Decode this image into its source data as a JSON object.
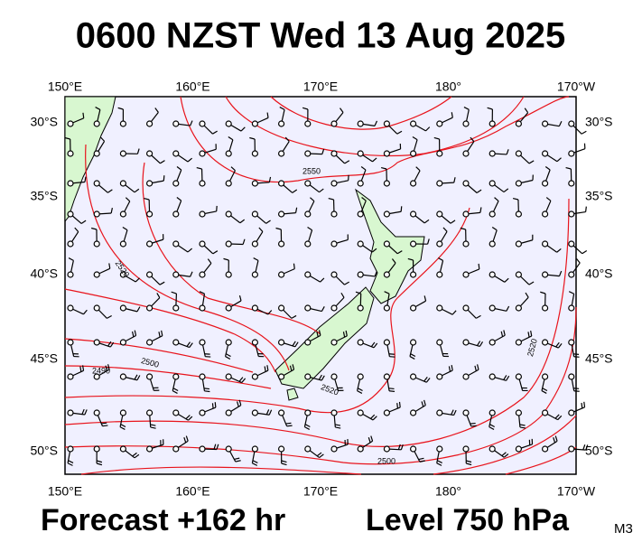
{
  "title": "0600 NZST Wed 13 Aug 2025",
  "footer": {
    "forecast": "Forecast +162 hr",
    "level": "Level 750 hPa",
    "model": "M3"
  },
  "lon_labels": [
    "150°E",
    "160°E",
    "170°E",
    "180°",
    "170°W"
  ],
  "lat_labels": [
    "30°S",
    "35°S",
    "40°S",
    "45°S",
    "50°S"
  ],
  "contour_labels": [
    "2550",
    "2520",
    "2500",
    "2490",
    "2520",
    "2500",
    "2520"
  ]
}
